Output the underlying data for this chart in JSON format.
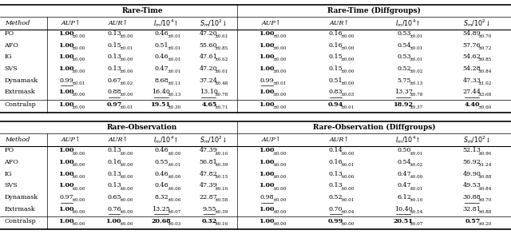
{
  "fig_width": 6.4,
  "fig_height": 2.93,
  "top_header_left": "Rare-Time",
  "top_header_right": "Rare-Time (Diffgroups)",
  "bottom_header_left": "Rare-Observation",
  "bottom_header_right": "Rare-Observation (Diffgroups)",
  "col_labels": [
    "AUP",
    "AUR",
    "Im/10^4",
    "Sm/10^2"
  ],
  "col_arrows": [
    "↑",
    "↑",
    "↑",
    "↓"
  ],
  "top_rows": [
    [
      "FO",
      true,
      false,
      "1.00",
      "±0.00",
      false,
      false,
      "0.13",
      "±0.00",
      false,
      false,
      "0.46",
      "±0.01",
      false,
      false,
      "47.20",
      "±0.61",
      true,
      false,
      "1.00",
      "±0.00",
      false,
      false,
      "0.16",
      "±0.00",
      false,
      false,
      "0.53",
      "±0.01",
      false,
      false,
      "54.89",
      "±0.70"
    ],
    [
      "AFO",
      true,
      false,
      "1.00",
      "±0.00",
      false,
      false,
      "0.15",
      "±0.01",
      false,
      false,
      "0.51",
      "±0.01",
      false,
      false,
      "55.60",
      "±0.85",
      true,
      false,
      "1.00",
      "±0.00",
      false,
      false,
      "0.16",
      "±0.00",
      false,
      false,
      "0.54",
      "±0.01",
      false,
      false,
      "57.76",
      "±0.72"
    ],
    [
      "IG",
      true,
      false,
      "1.00",
      "±0.00",
      false,
      false,
      "0.13",
      "±0.00",
      false,
      false,
      "0.46",
      "±0.01",
      false,
      false,
      "47.61",
      "±0.62",
      true,
      false,
      "1.00",
      "±0.00",
      false,
      false,
      "0.15",
      "±0.00",
      false,
      false,
      "0.53",
      "±0.01",
      false,
      false,
      "54.62",
      "±0.85"
    ],
    [
      "SVS",
      true,
      false,
      "1.00",
      "±0.00",
      false,
      false,
      "0.13",
      "±0.00",
      false,
      false,
      "0.47",
      "±0.01",
      false,
      false,
      "47.20",
      "±0.61",
      true,
      false,
      "1.00",
      "±0.00",
      false,
      false,
      "0.15",
      "±0.00",
      false,
      false,
      "0.52",
      "±0.02",
      false,
      false,
      "54.28",
      "±0.84"
    ],
    [
      "Dynamask",
      false,
      true,
      "0.99",
      "±0.01",
      false,
      false,
      "0.67",
      "±0.02",
      false,
      false,
      "8.68",
      "±0.11",
      false,
      false,
      "37.24",
      "±0.48",
      false,
      true,
      "0.99",
      "±0.01",
      false,
      false,
      "0.51",
      "±0.00",
      false,
      false,
      "5.75",
      "±0.13",
      false,
      false,
      "47.33",
      "±1.02"
    ],
    [
      "Extrmask",
      true,
      false,
      "1.00",
      "±0.00",
      false,
      true,
      "0.88",
      "±0.00",
      false,
      true,
      "16.40",
      "±0.13",
      false,
      true,
      "13.10",
      "±0.78",
      true,
      false,
      "1.00",
      "±0.00",
      false,
      true,
      "0.83",
      "±0.03",
      false,
      true,
      "13.37",
      "±0.78",
      false,
      true,
      "27.44",
      "±3.68"
    ]
  ],
  "top_contralsp": [
    true,
    false,
    "1.00",
    "±0.00",
    true,
    false,
    "0.97",
    "±0.01",
    true,
    false,
    "19.51",
    "±0.30",
    true,
    false,
    "4.65",
    "±0.71",
    true,
    false,
    "1.00",
    "±0.00",
    true,
    false,
    "0.94",
    "±0.01",
    true,
    false,
    "18.92",
    "±0.37",
    true,
    false,
    "4.40",
    "±0.60"
  ],
  "bottom_rows": [
    [
      "FO",
      true,
      false,
      "1.00",
      "±0.00",
      false,
      false,
      "0.13",
      "±0.00",
      false,
      false,
      "0.46",
      "±0.00",
      false,
      false,
      "47.39",
      "±0.16",
      true,
      false,
      "1.00",
      "±0.00",
      false,
      false,
      "0.14",
      "±0.00",
      false,
      false,
      "0.50",
      "±0.01",
      false,
      false,
      "52.13",
      "±0.96"
    ],
    [
      "AFO",
      true,
      false,
      "1.00",
      "±0.00",
      false,
      false,
      "0.16",
      "±0.00",
      false,
      false,
      "0.55",
      "±0.01",
      false,
      false,
      "56.81",
      "±0.39",
      true,
      false,
      "1.00",
      "±0.00",
      false,
      false,
      "0.16",
      "±0.01",
      false,
      false,
      "0.54",
      "±0.02",
      false,
      false,
      "56.92",
      "±1.24"
    ],
    [
      "IG",
      true,
      false,
      "1.00",
      "±0.00",
      false,
      false,
      "0.13",
      "±0.00",
      false,
      false,
      "0.46",
      "±0.00",
      false,
      false,
      "47.82",
      "±0.15",
      true,
      false,
      "1.00",
      "±0.00",
      false,
      false,
      "0.13",
      "±0.00",
      false,
      false,
      "0.47",
      "±0.00",
      false,
      false,
      "49.90",
      "±0.88"
    ],
    [
      "SVS",
      true,
      false,
      "1.00",
      "±0.00",
      false,
      false,
      "0.13",
      "±0.00",
      false,
      false,
      "0.46",
      "±0.00",
      false,
      false,
      "47.39",
      "±0.16",
      true,
      false,
      "1.00",
      "±0.00",
      false,
      false,
      "0.13",
      "±0.00",
      false,
      false,
      "0.47",
      "±0.01",
      false,
      false,
      "49.53",
      "±0.84"
    ],
    [
      "Dynamask",
      false,
      true,
      "0.97",
      "±0.00",
      false,
      false,
      "0.65",
      "±0.00",
      false,
      false,
      "8.32",
      "±0.06",
      false,
      false,
      "22.87",
      "±0.58",
      false,
      true,
      "0.98",
      "±0.00",
      false,
      false,
      "0.52",
      "±0.01",
      false,
      false,
      "6.12",
      "±0.10",
      false,
      true,
      "30.88",
      "±0.70"
    ],
    [
      "Extrmask",
      true,
      false,
      "1.00",
      "±0.00",
      false,
      true,
      "0.76",
      "±0.00",
      false,
      true,
      "13.25",
      "±0.07",
      false,
      true,
      "9.55",
      "±0.39",
      true,
      false,
      "1.00",
      "±0.00",
      false,
      true,
      "0.70",
      "±0.04",
      false,
      true,
      "10.40",
      "±0.54",
      false,
      false,
      "32.81",
      "±0.88"
    ]
  ],
  "bottom_contralsp": [
    true,
    false,
    "1.00",
    "±0.00",
    true,
    false,
    "1.00",
    "±0.00",
    true,
    false,
    "20.68",
    "±0.03",
    true,
    false,
    "0.32",
    "±0.16",
    true,
    false,
    "1.00",
    "±0.00",
    true,
    false,
    "0.99",
    "±0.00",
    true,
    false,
    "20.51",
    "±0.07",
    true,
    false,
    "0.57",
    "±0.20"
  ]
}
